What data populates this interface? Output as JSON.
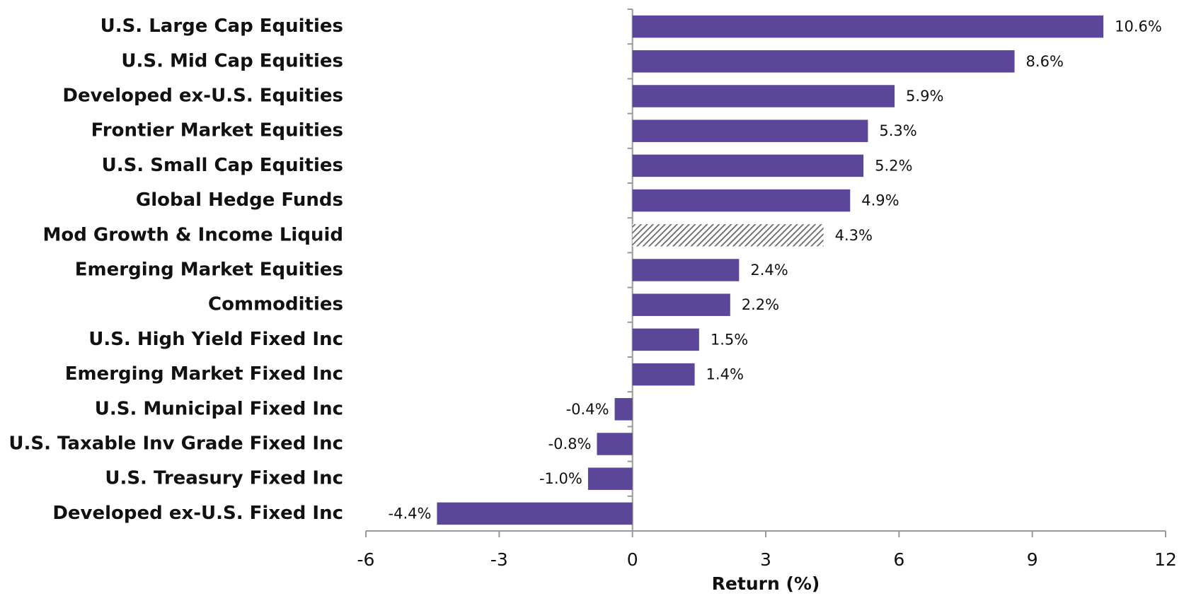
{
  "chart_data": {
    "type": "bar",
    "orientation": "horizontal",
    "xlabel": "Return (%)",
    "categories": [
      "U.S. Large Cap Equities",
      "U.S. Mid Cap Equities",
      "Developed ex-U.S. Equities",
      "Frontier Market Equities",
      "U.S. Small Cap Equities",
      "Global Hedge Funds",
      "Mod Growth & Income Liquid",
      "Emerging Market Equities",
      "Commodities",
      "U.S. High Yield Fixed Inc",
      "Emerging Market Fixed Inc",
      "U.S. Municipal Fixed Inc",
      "U.S. Taxable Inv Grade Fixed Inc",
      "U.S. Treasury Fixed Inc",
      "Developed ex-U.S. Fixed Inc"
    ],
    "values": [
      10.6,
      8.6,
      5.9,
      5.3,
      5.2,
      4.9,
      4.3,
      2.4,
      2.2,
      1.5,
      1.4,
      -0.4,
      -0.8,
      -1.0,
      -4.4
    ],
    "value_labels": [
      "10.6%",
      "8.6%",
      "5.9%",
      "5.3%",
      "5.2%",
      "4.9%",
      "4.3%",
      "2.4%",
      "2.2%",
      "1.5%",
      "1.4%",
      "-0.4%",
      "-0.8%",
      "-1.0%",
      "-4.4%"
    ],
    "bar_styles": [
      "solid",
      "solid",
      "solid",
      "solid",
      "solid",
      "solid",
      "hatched",
      "solid",
      "solid",
      "solid",
      "solid",
      "solid",
      "solid",
      "solid",
      "solid"
    ],
    "color": "#5b4699",
    "hatch_color": "#666666",
    "xlim": [
      -6,
      12
    ],
    "xticks": [
      -6,
      -3,
      0,
      3,
      6,
      9,
      12
    ],
    "grid": false
  }
}
